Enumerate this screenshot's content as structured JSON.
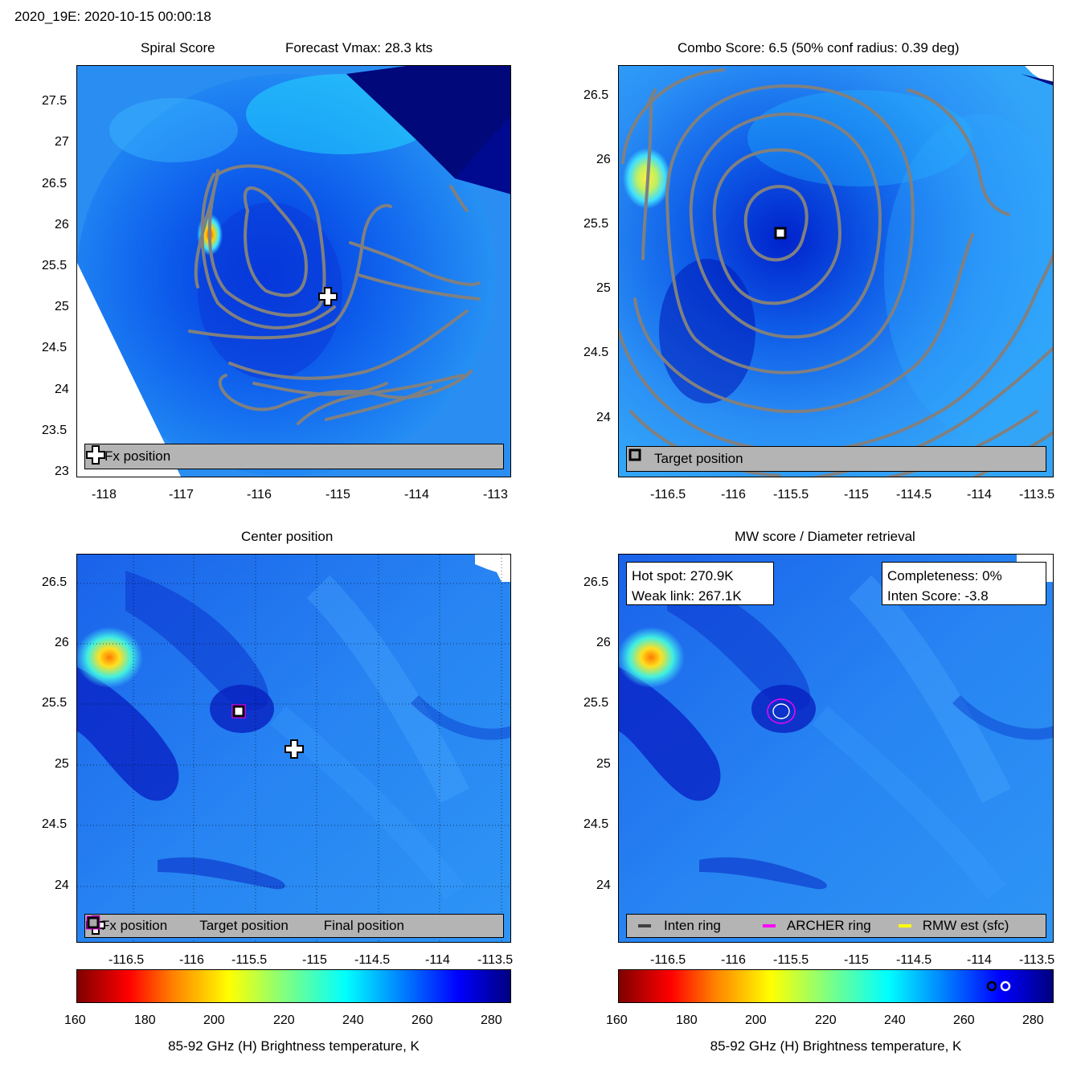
{
  "header": {
    "title": "2020_19E: 2020-10-15 00:00:18"
  },
  "panels": {
    "spiral": {
      "title_left": "Spiral Score",
      "title_right": "Forecast Vmax: 28.3 kts",
      "xticks": [
        "-118",
        "-117",
        "-116",
        "-115",
        "-114",
        "-113"
      ],
      "yticks": [
        "27.5",
        "27",
        "26.5",
        "26",
        "25.5",
        "25",
        "24.5",
        "24",
        "23.5",
        "23"
      ],
      "legend": [
        "Fx position"
      ]
    },
    "combo": {
      "title": "Combo Score: 6.5  (50% conf radius: 0.39 deg)",
      "xticks": [
        "-116.5",
        "-116",
        "-115.5",
        "-115",
        "-114.5",
        "-114",
        "-113.5"
      ],
      "yticks": [
        "26.5",
        "26",
        "25.5",
        "25",
        "24.5",
        "24"
      ],
      "legend": [
        "Target position"
      ]
    },
    "center": {
      "title": "Center position",
      "xticks": [
        "-116.5",
        "-116",
        "-115.5",
        "-115",
        "-114.5",
        "-114",
        "-113.5"
      ],
      "yticks": [
        "26.5",
        "26",
        "25.5",
        "25",
        "24.5",
        "24"
      ],
      "legend": [
        "Fx position",
        "Target position",
        "Final position"
      ]
    },
    "mw": {
      "title": "MW score / Diameter retrieval",
      "xticks": [
        "-116.5",
        "-116",
        "-115.5",
        "-115",
        "-114.5",
        "-114",
        "-113.5"
      ],
      "yticks": [
        "26.5",
        "26",
        "25.5",
        "25",
        "24.5",
        "24"
      ],
      "hot_spot": "Hot spot: 270.9K",
      "weak_link": "Weak link: 267.1K",
      "completeness": "Completeness: 0%",
      "inten_score": "Inten Score: -3.8",
      "legend": [
        "Inten ring",
        "ARCHER ring",
        "RMW est (sfc)"
      ]
    }
  },
  "colorbar": {
    "ticks": [
      "160",
      "180",
      "200",
      "220",
      "240",
      "260",
      "280"
    ],
    "label": "85-92 GHz (H) Brightness temperature, K"
  },
  "colors": {
    "legend_bg": "#b4b4b4",
    "contour": "#808080",
    "archer": "#ff00ff",
    "rmw": "#ffff00",
    "inten": "#404040"
  },
  "chart_data": [
    {
      "type": "heatmap",
      "title": "Spiral Score",
      "xlim": [
        -118.4,
        -112.9
      ],
      "ylim": [
        22.95,
        27.95
      ],
      "fx_position": {
        "lon": -115.2,
        "lat": 25.12
      }
    },
    {
      "type": "heatmap",
      "title": "Combo Score: 6.5  (50% conf radius: 0.39 deg)",
      "xlim": [
        -116.95,
        -113.5
      ],
      "ylim": [
        23.55,
        26.7
      ],
      "target_position": {
        "lon": -115.65,
        "lat": 25.42
      }
    },
    {
      "type": "heatmap",
      "title": "Center position",
      "xlim": [
        -116.95,
        -113.5
      ],
      "ylim": [
        23.55,
        26.7
      ],
      "fx_position": {
        "lon": -115.2,
        "lat": 25.12
      },
      "target_position": {
        "lon": -115.65,
        "lat": 25.42
      },
      "final_position": {
        "lon": -115.65,
        "lat": 25.42
      }
    },
    {
      "type": "heatmap",
      "title": "MW score / Diameter retrieval",
      "xlim": [
        -116.95,
        -113.5
      ],
      "ylim": [
        23.55,
        26.7
      ],
      "archer_ring_center": {
        "lon": -115.65,
        "lat": 25.42
      },
      "colorbar_markers": [
        267.1,
        270.9
      ]
    }
  ]
}
